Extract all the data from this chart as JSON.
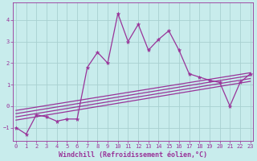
{
  "xlabel": "Windchill (Refroidissement éolien,°C)",
  "bg_color": "#c8ecec",
  "grid_color": "#a8d0d0",
  "line_color": "#993399",
  "x": [
    0,
    1,
    2,
    3,
    4,
    5,
    6,
    7,
    8,
    9,
    10,
    11,
    12,
    13,
    14,
    15,
    16,
    17,
    18,
    19,
    20,
    21,
    22,
    23
  ],
  "y": [
    -1.0,
    -1.3,
    -0.4,
    -0.5,
    -0.7,
    -0.6,
    -0.6,
    1.8,
    2.5,
    2.0,
    4.3,
    3.0,
    3.8,
    2.6,
    3.1,
    3.5,
    2.6,
    1.5,
    1.35,
    1.2,
    1.1,
    0.0,
    1.1,
    1.5
  ],
  "regression_lines": [
    {
      "x0": 0,
      "x1": 23,
      "y0": -0.65,
      "y1": 1.15
    },
    {
      "x0": 0,
      "x1": 23,
      "y0": -0.5,
      "y1": 1.28
    },
    {
      "x0": 0,
      "x1": 23,
      "y0": -0.35,
      "y1": 1.42
    },
    {
      "x0": 0,
      "x1": 23,
      "y0": -0.2,
      "y1": 1.55
    }
  ],
  "xlim": [
    -0.3,
    23.3
  ],
  "ylim": [
    -1.6,
    4.8
  ],
  "yticks": [
    -1,
    0,
    1,
    2,
    3,
    4
  ],
  "xticks": [
    0,
    1,
    2,
    3,
    4,
    5,
    6,
    7,
    8,
    9,
    10,
    11,
    12,
    13,
    14,
    15,
    16,
    17,
    18,
    19,
    20,
    21,
    22,
    23
  ],
  "fontsize_tick": 5.0,
  "fontsize_label": 6.0,
  "marker_size": 3.5,
  "line_width": 0.9
}
